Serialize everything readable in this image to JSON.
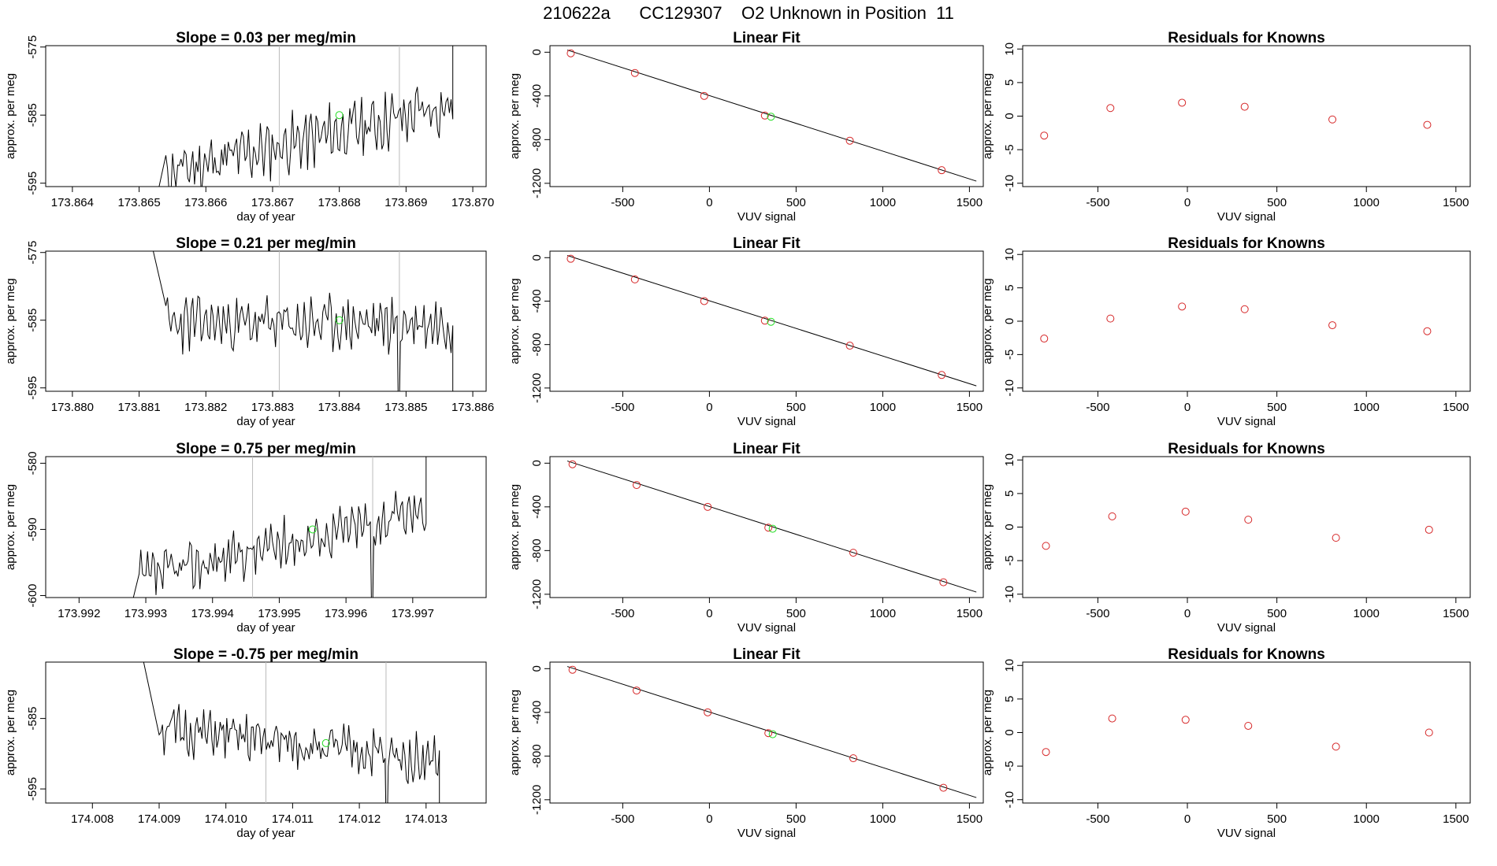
{
  "title": "210622a      CC129307    O2 Unknown in Position  11",
  "chart_data": [
    {
      "type": "line",
      "row": 1,
      "title": "Slope =  0.03  per meg/min",
      "xlabel": "day of year",
      "ylabel": "approx. per meg",
      "xlim": [
        173.8636,
        173.8702
      ],
      "ylim": [
        -595.5,
        -574.8
      ],
      "xticks": [
        "173.864",
        "173.865",
        "173.866",
        "173.867",
        "173.868",
        "173.869",
        "173.870"
      ],
      "yticks": [
        "-575",
        "-585",
        "-595"
      ],
      "vlines": [
        173.8671,
        173.8689
      ],
      "series_params": {
        "start": 173.8652,
        "end": 173.8697,
        "lead_in": 173.8654,
        "base_start": -593.5,
        "base_end": -583.5,
        "amp": 3.2,
        "seed": 11,
        "endpoints": [
          -600,
          -570
        ]
      },
      "marker": {
        "x": 173.868,
        "y": -585.0
      }
    },
    {
      "type": "line",
      "row": 2,
      "title": "Slope =  0.21  per meg/min",
      "xlabel": "day of year",
      "ylabel": "approx. per meg",
      "xlim": [
        173.8796,
        173.8862
      ],
      "ylim": [
        -595.5,
        -574.8
      ],
      "xticks": [
        "173.880",
        "173.881",
        "173.882",
        "173.883",
        "173.884",
        "173.885",
        "173.886"
      ],
      "yticks": [
        "-575",
        "-585",
        "-595"
      ],
      "vlines": [
        173.8831,
        173.8849
      ],
      "series_params": {
        "start": 173.8811,
        "end": 173.8857,
        "lead_in": 173.8814,
        "base_start": -585.5,
        "base_end": -585.5,
        "amp": 3.0,
        "seed": 23,
        "endpoints": [
          -570,
          -600
        ],
        "dips": [
          173.8849
        ]
      },
      "marker": {
        "x": 173.884,
        "y": -585.0
      }
    },
    {
      "type": "line",
      "row": 3,
      "title": "Slope =  0.75  per meg/min",
      "xlabel": "day of year",
      "ylabel": "approx. per meg",
      "xlim": [
        173.9915,
        173.9981
      ],
      "ylim": [
        -600.3,
        -579.0
      ],
      "xticks": [
        "173.992",
        "173.993",
        "173.994",
        "173.995",
        "173.996",
        "173.997"
      ],
      "yticks": [
        "-580",
        "-590",
        "-600"
      ],
      "vlines": [
        173.9946,
        173.9964
      ],
      "series_params": {
        "start": 173.9927,
        "end": 173.9972,
        "lead_in": 173.9929,
        "base_start": -597.5,
        "base_end": -587.0,
        "amp": 2.8,
        "seed": 37,
        "endpoints": [
          -605,
          -575
        ],
        "dips": [
          173.9964
        ]
      },
      "marker": {
        "x": 173.9955,
        "y": -590.0
      }
    },
    {
      "type": "line",
      "row": 4,
      "title": "Slope =  -0.75  per meg/min",
      "xlabel": "day of year",
      "ylabel": "approx. per meg",
      "xlim": [
        174.0073,
        174.0139
      ],
      "ylim": [
        -597.0,
        -577.0
      ],
      "xticks": [
        "174.008",
        "174.009",
        "174.010",
        "174.011",
        "174.012",
        "174.013"
      ],
      "yticks": [
        "-585",
        "-595"
      ],
      "vlines": [
        174.0106,
        174.0124
      ],
      "series_params": {
        "start": 174.0087,
        "end": 174.0132,
        "lead_in": 174.009,
        "base_start": -586.5,
        "base_end": -591.0,
        "amp": 2.6,
        "seed": 51,
        "endpoints": [
          -574,
          -600
        ],
        "dips": [
          174.0124
        ]
      },
      "marker": {
        "x": 174.0115,
        "y": -588.5
      }
    },
    {
      "type": "scatter",
      "row": 1,
      "title": "Linear Fit",
      "xlabel": "VUV signal",
      "ylabel": "approx. per meg",
      "xlim": [
        -920,
        1580
      ],
      "ylim": [
        -1230,
        60
      ],
      "xticks": [
        "-500",
        "0",
        "500",
        "1000",
        "1500"
      ],
      "yticks": [
        "0",
        "-400",
        "-800",
        "-1200"
      ],
      "fit_line": [
        [
          -820,
          20
        ],
        [
          1540,
          -1180
        ]
      ],
      "points": [
        [
          -800,
          -10
        ],
        [
          -430,
          -190
        ],
        [
          -30,
          -400
        ],
        [
          320,
          -580
        ],
        [
          810,
          -810
        ],
        [
          1340,
          -1080
        ]
      ],
      "unknown": {
        "x": 355,
        "y": -590
      }
    },
    {
      "type": "scatter",
      "row": 2,
      "title": "Linear Fit",
      "xlabel": "VUV signal",
      "ylabel": "approx. per meg",
      "xlim": [
        -920,
        1580
      ],
      "ylim": [
        -1230,
        60
      ],
      "xticks": [
        "-500",
        "0",
        "500",
        "1000",
        "1500"
      ],
      "yticks": [
        "0",
        "-400",
        "-800",
        "-1200"
      ],
      "fit_line": [
        [
          -820,
          20
        ],
        [
          1540,
          -1180
        ]
      ],
      "points": [
        [
          -800,
          -10
        ],
        [
          -430,
          -200
        ],
        [
          -30,
          -400
        ],
        [
          320,
          -580
        ],
        [
          810,
          -810
        ],
        [
          1340,
          -1080
        ]
      ],
      "unknown": {
        "x": 355,
        "y": -590
      }
    },
    {
      "type": "scatter",
      "row": 3,
      "title": "Linear Fit",
      "xlabel": "VUV signal",
      "ylabel": "approx. per meg",
      "xlim": [
        -920,
        1580
      ],
      "ylim": [
        -1230,
        60
      ],
      "xticks": [
        "-500",
        "0",
        "500",
        "1000",
        "1500"
      ],
      "yticks": [
        "0",
        "-400",
        "-800",
        "-1200"
      ],
      "fit_line": [
        [
          -820,
          20
        ],
        [
          1540,
          -1180
        ]
      ],
      "points": [
        [
          -790,
          -10
        ],
        [
          -420,
          -200
        ],
        [
          -10,
          -400
        ],
        [
          340,
          -590
        ],
        [
          830,
          -820
        ],
        [
          1350,
          -1090
        ]
      ],
      "unknown": {
        "x": 365,
        "y": -600
      }
    },
    {
      "type": "scatter",
      "row": 4,
      "title": "Linear Fit",
      "xlabel": "VUV signal",
      "ylabel": "approx. per meg",
      "xlim": [
        -920,
        1580
      ],
      "ylim": [
        -1230,
        60
      ],
      "xticks": [
        "-500",
        "0",
        "500",
        "1000",
        "1500"
      ],
      "yticks": [
        "0",
        "-400",
        "-800",
        "-1200"
      ],
      "fit_line": [
        [
          -820,
          20
        ],
        [
          1540,
          -1180
        ]
      ],
      "points": [
        [
          -790,
          -10
        ],
        [
          -420,
          -200
        ],
        [
          -10,
          -400
        ],
        [
          340,
          -590
        ],
        [
          830,
          -820
        ],
        [
          1350,
          -1090
        ]
      ],
      "unknown": {
        "x": 365,
        "y": -600
      }
    },
    {
      "type": "scatter",
      "row": 1,
      "title": "Residuals for Knowns",
      "xlabel": "VUV signal",
      "ylabel": "approx. per meg",
      "xlim": [
        -920,
        1580
      ],
      "ylim": [
        -10.5,
        10.5
      ],
      "xticks": [
        "-500",
        "0",
        "500",
        "1000",
        "1500"
      ],
      "yticks": [
        "10",
        "5",
        "0",
        "-5",
        "-10"
      ],
      "points": [
        [
          -800,
          -2.9
        ],
        [
          -430,
          1.2
        ],
        [
          -30,
          2.0
        ],
        [
          320,
          1.4
        ],
        [
          810,
          -0.5
        ],
        [
          1340,
          -1.3
        ]
      ]
    },
    {
      "type": "scatter",
      "row": 2,
      "title": "Residuals for Knowns",
      "xlabel": "VUV signal",
      "ylabel": "approx. per meg",
      "xlim": [
        -920,
        1580
      ],
      "ylim": [
        -10.5,
        10.5
      ],
      "xticks": [
        "-500",
        "0",
        "500",
        "1000",
        "1500"
      ],
      "yticks": [
        "10",
        "5",
        "0",
        "-5",
        "-10"
      ],
      "points": [
        [
          -800,
          -2.6
        ],
        [
          -430,
          0.4
        ],
        [
          -30,
          2.2
        ],
        [
          320,
          1.8
        ],
        [
          810,
          -0.6
        ],
        [
          1340,
          -1.5
        ]
      ]
    },
    {
      "type": "scatter",
      "row": 3,
      "title": "Residuals for Knowns",
      "xlabel": "VUV signal",
      "ylabel": "approx. per meg",
      "xlim": [
        -920,
        1580
      ],
      "ylim": [
        -10.5,
        10.5
      ],
      "xticks": [
        "-500",
        "0",
        "500",
        "1000",
        "1500"
      ],
      "yticks": [
        "10",
        "5",
        "0",
        "-5",
        "-10"
      ],
      "points": [
        [
          -790,
          -2.8
        ],
        [
          -420,
          1.6
        ],
        [
          -10,
          2.3
        ],
        [
          340,
          1.1
        ],
        [
          830,
          -1.6
        ],
        [
          1350,
          -0.4
        ]
      ]
    },
    {
      "type": "scatter",
      "row": 4,
      "title": "Residuals for Knowns",
      "xlabel": "VUV signal",
      "ylabel": "approx. per meg",
      "xlim": [
        -920,
        1580
      ],
      "ylim": [
        -10.5,
        10.5
      ],
      "xticks": [
        "-500",
        "0",
        "500",
        "1000",
        "1500"
      ],
      "yticks": [
        "10",
        "5",
        "0",
        "-5",
        "-10"
      ],
      "points": [
        [
          -790,
          -2.9
        ],
        [
          -420,
          2.1
        ],
        [
          -10,
          1.9
        ],
        [
          340,
          1.0
        ],
        [
          830,
          -2.1
        ],
        [
          1350,
          0.0
        ]
      ]
    }
  ],
  "colors": {
    "line": "#000000",
    "known_points": "#d62728",
    "unknown_point": "#22dd22",
    "vlines": "#bbbbbb",
    "axis": "#000000"
  }
}
